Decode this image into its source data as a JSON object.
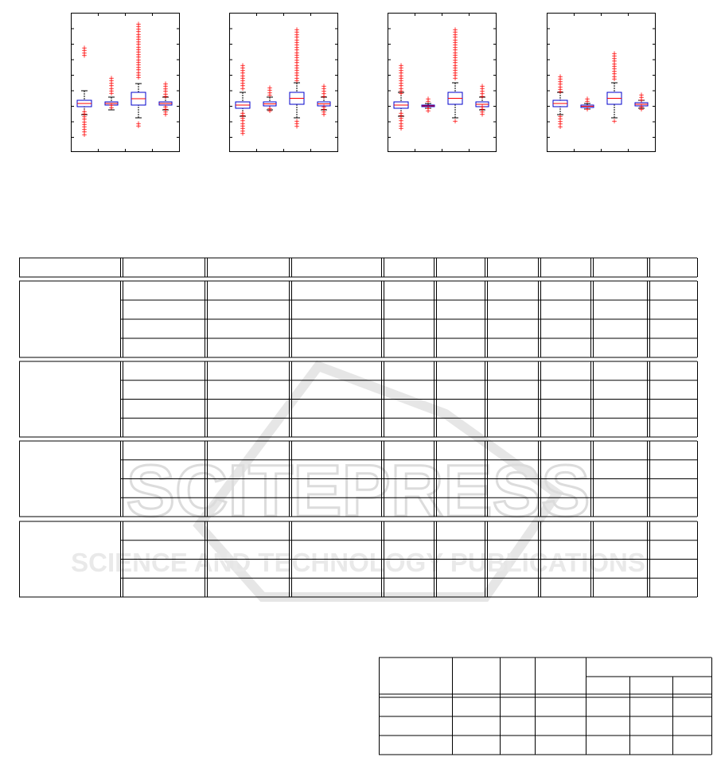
{
  "watermark": {
    "brand": "SCITEPRESS",
    "tagline": "SCIENCE AND TECHNOLOGY PUBLICATIONS"
  },
  "chart_data": [
    {
      "type": "box",
      "outlier_color": "#ff0000",
      "box_color": "#0000cc",
      "median_color": "#ff0000",
      "boxes": 4
    },
    {
      "type": "box",
      "outlier_color": "#ff0000",
      "box_color": "#0000cc",
      "median_color": "#ff0000",
      "boxes": 4
    },
    {
      "type": "box",
      "outlier_color": "#ff0000",
      "box_color": "#0000cc",
      "median_color": "#ff0000",
      "boxes": 4
    },
    {
      "type": "box",
      "outlier_color": "#ff0000",
      "box_color": "#0000cc",
      "median_color": "#ff0000",
      "boxes": 4
    }
  ],
  "main_table": {
    "groups": 4,
    "rows_per_group": 4,
    "columns": 10
  },
  "small_table": {
    "header_rows": 2,
    "body_rows": 3
  }
}
